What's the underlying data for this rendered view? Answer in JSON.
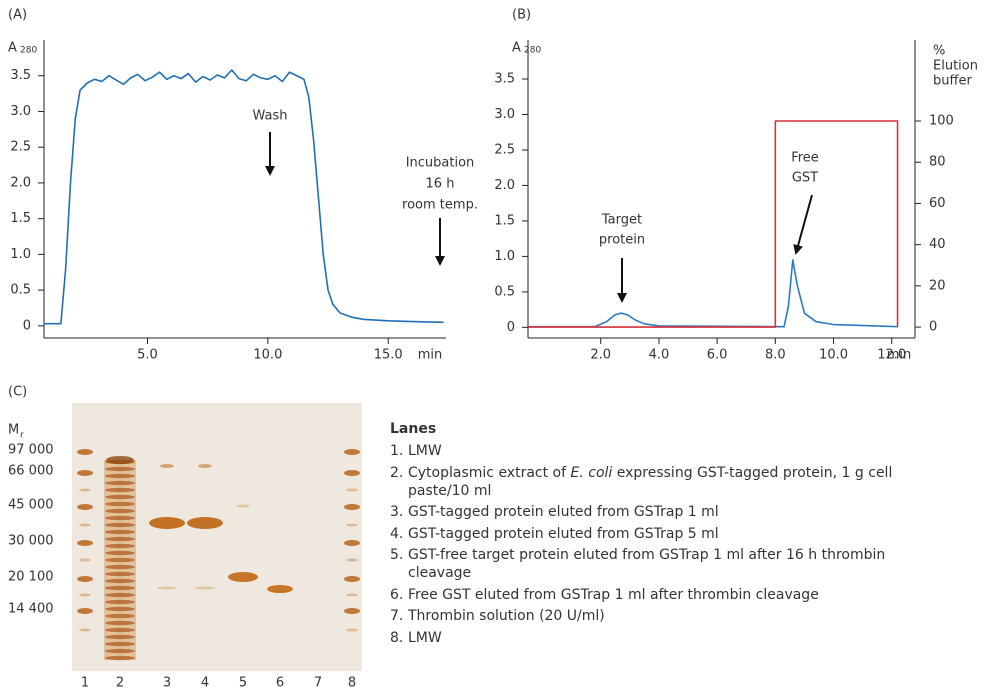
{
  "chart_data": [
    {
      "type": "line",
      "panel_label": "(A)",
      "ylabel": "A",
      "ylabel_sub": "280",
      "xlabel": "min",
      "xlim": [
        0.7,
        17.4
      ],
      "ylim": [
        -0.17,
        4.0
      ],
      "xticks": [
        {
          "value": 5,
          "label": "5.0"
        },
        {
          "value": 10,
          "label": "10.0"
        },
        {
          "value": 15,
          "label": "15.0"
        }
      ],
      "yticks": [
        0,
        0.5,
        {
          "value": 1,
          "label": "1.0"
        },
        1.5,
        {
          "value": 2,
          "label": "2.0"
        },
        2.5,
        {
          "value": 3,
          "label": "3.0"
        },
        3.5
      ],
      "annotations": [
        "Wash",
        "Incubation",
        "16 h",
        "room temp."
      ],
      "series": [
        {
          "color": "#1f6fb2",
          "x": [
            0.7,
            1.0,
            1.4,
            1.6,
            1.8,
            2.0,
            2.2,
            2.5,
            2.8,
            3.1,
            3.4,
            3.7,
            4.0,
            4.3,
            4.6,
            4.9,
            5.2,
            5.5,
            5.8,
            6.1,
            6.4,
            6.7,
            7.0,
            7.3,
            7.6,
            7.9,
            8.2,
            8.5,
            8.8,
            9.1,
            9.4,
            9.7,
            10.0,
            10.3,
            10.6,
            10.9,
            11.2,
            11.5,
            11.7,
            11.9,
            12.1,
            12.3,
            12.5,
            12.7,
            13.0,
            13.5,
            14.0,
            15.0,
            16.0,
            17.3
          ],
          "values": [
            0.03,
            0.03,
            0.03,
            0.8,
            2.0,
            2.9,
            3.3,
            3.4,
            3.45,
            3.42,
            3.5,
            3.44,
            3.38,
            3.47,
            3.52,
            3.43,
            3.48,
            3.55,
            3.45,
            3.5,
            3.46,
            3.53,
            3.41,
            3.49,
            3.44,
            3.51,
            3.47,
            3.58,
            3.46,
            3.43,
            3.52,
            3.47,
            3.45,
            3.5,
            3.42,
            3.55,
            3.5,
            3.45,
            3.2,
            2.6,
            1.8,
            1.0,
            0.5,
            0.3,
            0.18,
            0.12,
            0.09,
            0.07,
            0.06,
            0.05
          ]
        }
      ]
    },
    {
      "type": "line",
      "panel_label": "(B)",
      "ylabel": "A",
      "ylabel_sub": "280",
      "xlabel": "min",
      "y2label": [
        "%",
        "Elution",
        "buffer"
      ],
      "xlim": [
        -0.5,
        12.8
      ],
      "ylim": [
        -0.15,
        4.05
      ],
      "y2lim": [
        -5.3,
        139.3
      ],
      "xticks": [
        {
          "value": 2,
          "label": "2.0"
        },
        {
          "value": 4,
          "label": "4.0"
        },
        {
          "value": 6,
          "label": "6.0"
        },
        {
          "value": 8,
          "label": "8.0"
        },
        {
          "value": 10,
          "label": "10.0"
        },
        {
          "value": 12,
          "label": "12.0"
        }
      ],
      "yticks": [
        0,
        0.5,
        {
          "value": 1,
          "label": "1.0"
        },
        1.5,
        {
          "value": 2,
          "label": "2.0"
        },
        2.5,
        {
          "value": 3,
          "label": "3.0"
        },
        3.5
      ],
      "y2ticks": [
        0,
        20,
        40,
        60,
        80,
        100
      ],
      "annotations": [
        "Target",
        "protein",
        "Free",
        "GST"
      ],
      "series": [
        {
          "color": "#2b7bc0",
          "x": [
            -0.5,
            1.8,
            2.2,
            2.5,
            2.7,
            2.9,
            3.2,
            3.5,
            4.0,
            8.3,
            8.45,
            8.6,
            8.75,
            9.0,
            9.4,
            10.0,
            12.2
          ],
          "values": [
            0.01,
            0.01,
            0.08,
            0.18,
            0.2,
            0.18,
            0.1,
            0.05,
            0.02,
            0.01,
            0.3,
            0.95,
            0.6,
            0.2,
            0.08,
            0.04,
            0.01
          ]
        },
        {
          "color": "#d9313a",
          "axis": "y2",
          "x": [
            -0.5,
            8.0,
            8.0,
            12.2,
            12.2
          ],
          "values": [
            0,
            0,
            100,
            100,
            0
          ]
        }
      ]
    }
  ],
  "gel": {
    "panel_label": "(C)",
    "mr_label": "M",
    "mr_sub": "r",
    "mr_markers": [
      "97 000",
      "66 000",
      "45 000",
      "30 000",
      "20 100",
      "14 400"
    ],
    "lane_numbers": [
      "1",
      "2",
      "3",
      "4",
      "5",
      "6",
      "7",
      "8"
    ]
  },
  "lanes": {
    "title": "Lanes",
    "items": [
      {
        "number": "1.",
        "parts": [
          {
            "text": "LMW"
          }
        ]
      },
      {
        "number": "2.",
        "parts": [
          {
            "text": "Cytoplasmic extract of "
          },
          {
            "text": "E. coli",
            "italic": true
          },
          {
            "text": " expressing GST-tagged protein, 1 g cell paste/10 ml"
          }
        ]
      },
      {
        "number": "3.",
        "parts": [
          {
            "text": "GST-tagged protein eluted from GSTrap 1 ml"
          }
        ]
      },
      {
        "number": "4.",
        "parts": [
          {
            "text": "GST-tagged protein eluted from GSTrap 5 ml"
          }
        ]
      },
      {
        "number": "5.",
        "parts": [
          {
            "text": "GST-free target protein eluted from GSTrap 1 ml after 16 h thrombin cleavage"
          }
        ]
      },
      {
        "number": "6.",
        "parts": [
          {
            "text": "Free GST eluted from GSTrap 1 ml after thrombin cleavage"
          }
        ]
      },
      {
        "number": "7.",
        "parts": [
          {
            "text": "Thrombin solution (20 U/ml)"
          }
        ]
      },
      {
        "number": "8.",
        "parts": [
          {
            "text": "LMW"
          }
        ]
      }
    ]
  }
}
